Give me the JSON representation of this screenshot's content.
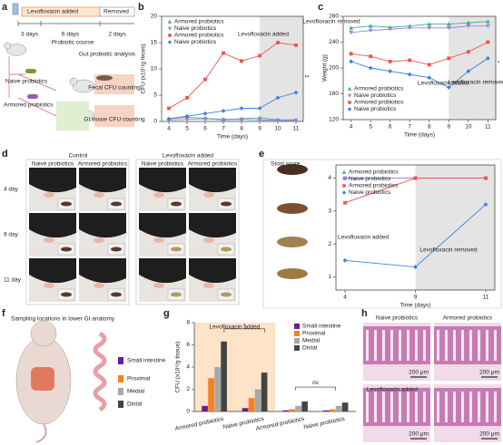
{
  "panel_labels": [
    "a",
    "b",
    "c",
    "d",
    "e",
    "f",
    "g",
    "h"
  ],
  "panel_a": {
    "treatment": "Levofloxacin added",
    "removed": "Removed",
    "durations": [
      "3 days",
      "6 days",
      "2 days"
    ],
    "course": "Probiotic course",
    "groups": [
      "Naive probiotics",
      "Armored probiotics"
    ],
    "analysis": "Gut probiotic analysis",
    "methods": [
      "Fecal CFU counting",
      "GI tissue CFU counting"
    ]
  },
  "panel_d": {
    "conditions": [
      "Control",
      "Levofloxacin added"
    ],
    "columns": [
      "Naive probiotics",
      "Armored probiotics",
      "Naive probiotics",
      "Armored probiotics"
    ],
    "rows": [
      "4 day",
      "9 day",
      "11 day"
    ]
  },
  "panel_f": {
    "title": "Sampling locations in lower GI anatomy",
    "regions": [
      "Small intestine",
      "Proximal",
      "Medial",
      "Distal"
    ]
  },
  "panel_h": {
    "columns": [
      "Naive probiotics",
      "Armored probiotics"
    ],
    "treatment": "Levofloxacin added",
    "scale_bar": "200 μm"
  },
  "chart_data": [
    {
      "type": "line",
      "xlabel": "Time (days)",
      "ylabel": "CFU (x10⁷/g feces)",
      "x": [
        4,
        5,
        6,
        7,
        8,
        9,
        10,
        11
      ],
      "xlim": [
        3.6,
        11.4
      ],
      "xticks": [
        4,
        5,
        6,
        7,
        8,
        9,
        10,
        11
      ],
      "ylim": [
        0,
        20
      ],
      "yticks": [
        0,
        5,
        10,
        15,
        20
      ],
      "shade_from": 9,
      "legend": "upper left",
      "annotations": {
        "added": "Levofloxacin added",
        "removed": "Levofloxacin removed",
        "significance": "**"
      },
      "series": [
        {
          "name": "Armored probiotics",
          "color": "#3bb08f",
          "marker": "triangle-up",
          "values": [
            0.5,
            0.8,
            0.6,
            0.4,
            0.5,
            0.7,
            0.3,
            0.3
          ]
        },
        {
          "name": "Naive probiotics",
          "color": "#9b7fe6",
          "marker": "triangle-down",
          "values": [
            0.3,
            0.4,
            0.5,
            0.3,
            0.4,
            0.3,
            0.2,
            0.2
          ]
        },
        {
          "name": "Armored probiotics",
          "color": "#f0524f",
          "marker": "square",
          "values": [
            2.5,
            4.5,
            8,
            13,
            11.5,
            12.5,
            15,
            14.5
          ]
        },
        {
          "name": "Naive probiotics",
          "color": "#3f7fdc",
          "marker": "diamond",
          "values": [
            0.5,
            1,
            1.5,
            2,
            2.5,
            2.5,
            4.5,
            5.5
          ]
        }
      ]
    },
    {
      "type": "line",
      "xlabel": "Time (days)",
      "ylabel": "Weight (g)",
      "x": [
        4,
        5,
        6,
        7,
        8,
        9,
        10,
        11
      ],
      "xlim": [
        3.6,
        11.4
      ],
      "xticks": [
        4,
        5,
        6,
        7,
        8,
        9,
        10,
        11
      ],
      "ylim": [
        120,
        280
      ],
      "yticks": [
        120,
        160,
        200,
        240,
        280
      ],
      "shade_from": 9,
      "legend": "lower left",
      "annotations": {
        "added": "Levofloxacin added",
        "removed": "Levofloxacin removed",
        "significance": "*"
      },
      "series": [
        {
          "name": "Armored probiotics",
          "color": "#3bb08f",
          "marker": "triangle-up",
          "values": [
            262,
            265,
            263,
            265,
            268,
            268,
            270,
            272
          ]
        },
        {
          "name": "Naive probiotics",
          "color": "#9b7fe6",
          "marker": "triangle-down",
          "values": [
            255,
            258,
            260,
            262,
            262,
            262,
            265,
            265
          ]
        },
        {
          "name": "Armored probiotics",
          "color": "#f0524f",
          "marker": "square",
          "values": [
            222,
            218,
            210,
            212,
            205,
            215,
            225,
            240
          ]
        },
        {
          "name": "Naive probiotics",
          "color": "#3f7fdc",
          "marker": "diamond",
          "values": [
            210,
            200,
            195,
            190,
            185,
            170,
            195,
            215
          ]
        }
      ]
    },
    {
      "type": "line",
      "title": "Stool score",
      "xlabel": "Time (days)",
      "categories": [
        "4",
        "9",
        "11"
      ],
      "ylim": [
        0.6,
        4.4
      ],
      "yticks": [
        1,
        2,
        3,
        4
      ],
      "shade_from": "9",
      "legend": "upper left",
      "annotations": {
        "added": "Levofloxacin added",
        "removed": "Levofloxacin removed"
      },
      "series": [
        {
          "name": "Armored probiotics",
          "color": "#3bb08f",
          "marker": "triangle-up",
          "values": [
            4,
            4,
            4
          ]
        },
        {
          "name": "Naive probiotics",
          "color": "#9b7fe6",
          "marker": "triangle-down",
          "values": [
            4,
            4,
            4
          ]
        },
        {
          "name": "Armored probiotics",
          "color": "#f0524f",
          "marker": "square",
          "values": [
            3.25,
            4,
            4
          ]
        },
        {
          "name": "Naive probiotics",
          "color": "#3f7fdc",
          "marker": "diamond",
          "values": [
            1.5,
            1.3,
            3.2
          ]
        }
      ]
    },
    {
      "type": "bar",
      "ylabel": "CFU (x10⁵/g tissue)",
      "categories": [
        "Armored probiotics",
        "Naive probiotics",
        "Armored probiotics",
        "Naive probiotics"
      ],
      "ylim": [
        0,
        8
      ],
      "yticks": [
        0,
        2,
        4,
        6,
        8
      ],
      "legend": "upper right",
      "annotations": {
        "added": "Levofloxacin added",
        "ns": "ns",
        "significance": "*"
      },
      "series": [
        {
          "name": "Small intestine",
          "color": "#6a1b9a",
          "values": [
            0.5,
            0.3,
            0.1,
            0.1
          ]
        },
        {
          "name": "Proximal",
          "color": "#f5811f",
          "values": [
            3,
            1.2,
            0.2,
            0.2
          ]
        },
        {
          "name": "Medial",
          "color": "#a8a8a8",
          "values": [
            4,
            2,
            0.5,
            0.5
          ]
        },
        {
          "name": "Distal",
          "color": "#444444",
          "values": [
            6.3,
            3.5,
            0.9,
            0.8
          ]
        }
      ]
    }
  ]
}
